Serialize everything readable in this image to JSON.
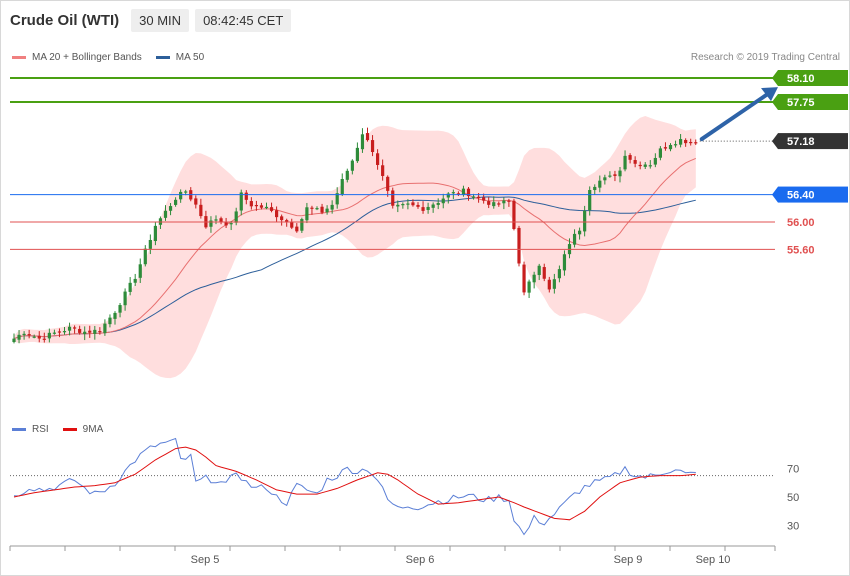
{
  "header": {
    "instrument": "Crude Oil (WTI)",
    "timeframe": "30 MIN",
    "time": "08:42:45 CET"
  },
  "legend_main": {
    "ma20_label": "MA 20 + Bollinger Bands",
    "ma50_label": "MA 50"
  },
  "legend_rsi": {
    "rsi_label": "RSI",
    "ma9_label": "9MA"
  },
  "copyright": "Research © 2019 Trading Central",
  "colors": {
    "bull": "#2e8b3a",
    "bear": "#c81e1e",
    "ma20": "#e87070",
    "band_fill": "#ffdede",
    "ma50": "#2d5f9a",
    "green_level": "#4aa012",
    "blue_level": "#1a6bef",
    "red_level": "#e05050",
    "current": "#333333",
    "arrow": "#2e63a8",
    "rsi": "#5b7fd6",
    "rsi_ma": "#e01010"
  },
  "chart_data": [
    {
      "type": "candlestick",
      "ylim": [
        53.6,
        58.4
      ],
      "x_ticks": [
        "Sep 5",
        "Sep 6",
        "Sep 9",
        "Sep 10"
      ],
      "levels": [
        {
          "value": 58.1,
          "label": "58.10",
          "style": "green"
        },
        {
          "value": 57.75,
          "label": "57.75",
          "style": "green"
        },
        {
          "value": 57.18,
          "label": "57.18",
          "style": "current"
        },
        {
          "value": 56.4,
          "label": "56.40",
          "style": "blue"
        },
        {
          "value": 56.0,
          "label": "56.00",
          "style": "red"
        },
        {
          "value": 55.6,
          "label": "55.60",
          "style": "red"
        }
      ],
      "forecast_arrow": {
        "from_value": 57.18,
        "to_value": 57.88
      },
      "close_anchors": [
        [
          0,
          54.3
        ],
        [
          2,
          54.4
        ],
        [
          5,
          54.3
        ],
        [
          8,
          54.38
        ],
        [
          11,
          54.45
        ],
        [
          14,
          54.4
        ],
        [
          17,
          54.42
        ],
        [
          20,
          54.7
        ],
        [
          24,
          55.2
        ],
        [
          28,
          55.95
        ],
        [
          32,
          56.35
        ],
        [
          34,
          56.45
        ],
        [
          36,
          56.25
        ],
        [
          38,
          55.95
        ],
        [
          40,
          56.05
        ],
        [
          43,
          55.95
        ],
        [
          45,
          56.4
        ],
        [
          47,
          56.25
        ],
        [
          50,
          56.2
        ],
        [
          53,
          56.05
        ],
        [
          56,
          55.9
        ],
        [
          58,
          56.2
        ],
        [
          61,
          56.15
        ],
        [
          63,
          56.25
        ],
        [
          65,
          56.6
        ],
        [
          67,
          56.9
        ],
        [
          69,
          57.3
        ],
        [
          71,
          57.05
        ],
        [
          73,
          56.65
        ],
        [
          75,
          56.2
        ],
        [
          78,
          56.25
        ],
        [
          81,
          56.2
        ],
        [
          84,
          56.3
        ],
        [
          86,
          56.4
        ],
        [
          89,
          56.45
        ],
        [
          92,
          56.35
        ],
        [
          95,
          56.25
        ],
        [
          98,
          56.3
        ],
        [
          99,
          55.9
        ],
        [
          101,
          54.95
        ],
        [
          104,
          55.4
        ],
        [
          106,
          55.0
        ],
        [
          108,
          55.3
        ],
        [
          110,
          55.7
        ],
        [
          112,
          55.9
        ],
        [
          114,
          56.5
        ],
        [
          116,
          56.6
        ],
        [
          118,
          56.65
        ],
        [
          120,
          56.75
        ],
        [
          121,
          57.0
        ],
        [
          123,
          56.85
        ],
        [
          126,
          56.85
        ],
        [
          128,
          57.05
        ],
        [
          130,
          57.15
        ],
        [
          132,
          57.2
        ],
        [
          135,
          57.15
        ]
      ]
    },
    {
      "type": "line",
      "ylim": [
        20,
        100
      ],
      "y_ticks": [
        30,
        50,
        70
      ],
      "overbought": 65,
      "series": [
        {
          "name": "RSI",
          "points": [
            [
              0,
              50
            ],
            [
              3,
              57
            ],
            [
              6,
              55
            ],
            [
              9,
              58
            ],
            [
              12,
              62
            ],
            [
              14,
              56
            ],
            [
              16,
              52
            ],
            [
              18,
              55
            ],
            [
              20,
              60
            ],
            [
              22,
              68
            ],
            [
              24,
              76
            ],
            [
              26,
              82
            ],
            [
              28,
              86
            ],
            [
              30,
              88
            ],
            [
              32,
              89
            ],
            [
              33,
              76
            ],
            [
              35,
              78
            ],
            [
              36,
              60
            ],
            [
              38,
              63
            ],
            [
              40,
              62
            ],
            [
              42,
              58
            ],
            [
              44,
              68
            ],
            [
              46,
              60
            ],
            [
              48,
              56
            ],
            [
              50,
              57
            ],
            [
              52,
              50
            ],
            [
              54,
              46
            ],
            [
              56,
              58
            ],
            [
              58,
              55
            ],
            [
              60,
              52
            ],
            [
              62,
              62
            ],
            [
              64,
              65
            ],
            [
              66,
              70
            ],
            [
              68,
              68
            ],
            [
              70,
              70
            ],
            [
              72,
              62
            ],
            [
              74,
              48
            ],
            [
              76,
              42
            ],
            [
              78,
              44
            ],
            [
              80,
              43
            ],
            [
              82,
              45
            ],
            [
              84,
              47
            ],
            [
              86,
              48
            ],
            [
              88,
              50
            ],
            [
              90,
              51
            ],
            [
              92,
              49
            ],
            [
              94,
              48
            ],
            [
              96,
              50
            ],
            [
              98,
              48
            ],
            [
              99,
              35
            ],
            [
              101,
              23
            ],
            [
              103,
              35
            ],
            [
              105,
              32
            ],
            [
              107,
              38
            ],
            [
              109,
              45
            ],
            [
              111,
              52
            ],
            [
              113,
              57
            ],
            [
              115,
              60
            ],
            [
              117,
              62
            ],
            [
              119,
              65
            ],
            [
              121,
              70
            ],
            [
              123,
              65
            ],
            [
              125,
              64
            ],
            [
              127,
              65
            ],
            [
              129,
              68
            ],
            [
              131,
              70
            ],
            [
              133,
              66
            ],
            [
              135,
              66
            ]
          ]
        },
        {
          "name": "9MA",
          "points": [
            [
              0,
              50
            ],
            [
              4,
              53
            ],
            [
              8,
              55
            ],
            [
              12,
              57
            ],
            [
              16,
              58
            ],
            [
              20,
              60
            ],
            [
              24,
              66
            ],
            [
              28,
              76
            ],
            [
              32,
              84
            ],
            [
              34,
              85
            ],
            [
              36,
              83
            ],
            [
              38,
              78
            ],
            [
              40,
              72
            ],
            [
              44,
              68
            ],
            [
              48,
              62
            ],
            [
              52,
              55
            ],
            [
              56,
              52
            ],
            [
              60,
              52
            ],
            [
              64,
              56
            ],
            [
              68,
              62
            ],
            [
              72,
              67
            ],
            [
              74,
              66
            ],
            [
              76,
              62
            ],
            [
              80,
              52
            ],
            [
              84,
              45
            ],
            [
              88,
              46
            ],
            [
              92,
              48
            ],
            [
              96,
              50
            ],
            [
              99,
              46
            ],
            [
              101,
              43
            ],
            [
              104,
              39
            ],
            [
              107,
              35
            ],
            [
              110,
              34
            ],
            [
              113,
              40
            ],
            [
              116,
              50
            ],
            [
              120,
              60
            ],
            [
              124,
              64
            ],
            [
              128,
              65
            ],
            [
              132,
              65
            ],
            [
              135,
              66
            ]
          ]
        }
      ]
    }
  ]
}
